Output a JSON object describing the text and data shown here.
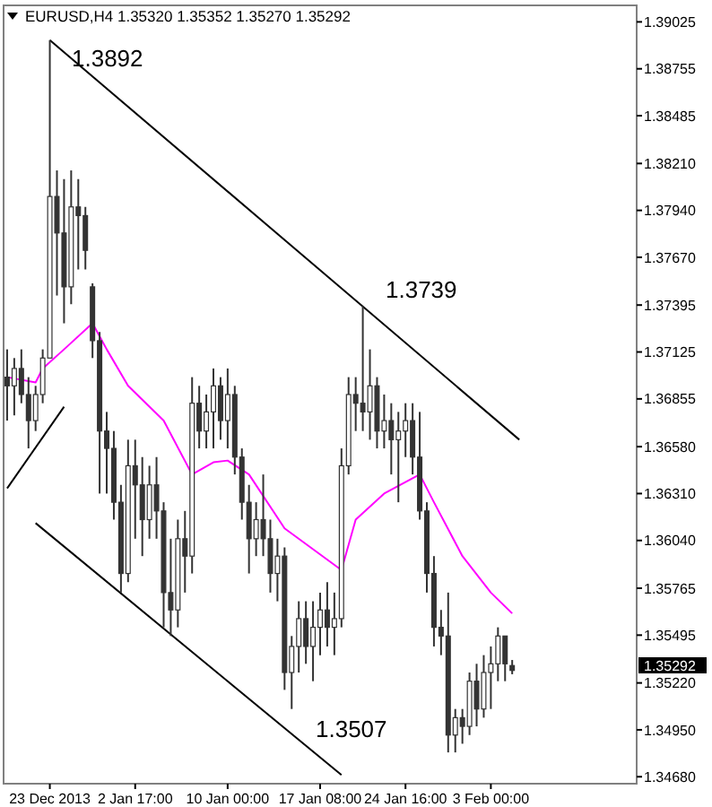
{
  "chart_data": {
    "type": "candlestick",
    "title": "EURUSD,H4 1.35320 1.35352 1.35270 1.35292",
    "color": "#333333",
    "grid": false,
    "categories": [
      null,
      null,
      null,
      null,
      null,
      null,
      "23 Dec 2013",
      null,
      null,
      null,
      null,
      null,
      null,
      null,
      null,
      null,
      null,
      null,
      "2 Jan 17:00",
      null,
      null,
      null,
      null,
      null,
      null,
      null,
      null,
      null,
      null,
      null,
      null,
      "10 Jan 00:00",
      null,
      null,
      null,
      null,
      null,
      null,
      null,
      null,
      null,
      null,
      null,
      null,
      "17 Jan 08:00",
      null,
      null,
      null,
      null,
      null,
      null,
      null,
      null,
      null,
      null,
      null,
      "24 Jan 16:00",
      null,
      null,
      null,
      null,
      null,
      null,
      null,
      null,
      null,
      null,
      null,
      "3 Feb 00:00",
      null,
      null,
      null,
      null,
      null,
      null,
      null,
      null,
      null,
      null,
      null,
      null,
      null,
      null,
      null,
      null,
      null,
      null,
      null,
      null
    ],
    "ylim": [
      1.3464,
      1.3912
    ],
    "yticks": [
      {
        "value": 1.39025,
        "label": "1.39025"
      },
      {
        "value": 1.38755,
        "label": "1.38755"
      },
      {
        "value": 1.38485,
        "label": "1.38485"
      },
      {
        "value": 1.3821,
        "label": "1.38210"
      },
      {
        "value": 1.3794,
        "label": "1.37940"
      },
      {
        "value": 1.3767,
        "label": "1.37670"
      },
      {
        "value": 1.37395,
        "label": "1.37395"
      },
      {
        "value": 1.37125,
        "label": "1.37125"
      },
      {
        "value": 1.36855,
        "label": "1.36855"
      },
      {
        "value": 1.3658,
        "label": "1.36580"
      },
      {
        "value": 1.3631,
        "label": "1.36310"
      },
      {
        "value": 1.3604,
        "label": "1.36040"
      },
      {
        "value": 1.35765,
        "label": "1.35765"
      },
      {
        "value": 1.35495,
        "label": "1.35495"
      },
      {
        "value": 1.3522,
        "label": "1.35220"
      },
      {
        "value": 1.3495,
        "label": "1.34950"
      },
      {
        "value": 1.3468,
        "label": "1.34680"
      }
    ],
    "ohlc": [
      [
        1.3698,
        1.3714,
        1.3673,
        1.3693
      ],
      [
        1.3693,
        1.3709,
        1.3676,
        1.3703
      ],
      [
        1.3703,
        1.3714,
        1.3683,
        1.3688
      ],
      [
        1.3688,
        1.3698,
        1.3657,
        1.3673
      ],
      [
        1.3673,
        1.3693,
        1.3667,
        1.3688
      ],
      [
        1.3688,
        1.3714,
        1.3683,
        1.3709
      ],
      [
        1.3709,
        1.3892,
        1.3709,
        1.3802
      ],
      [
        1.3802,
        1.3817,
        1.3745,
        1.3781
      ],
      [
        1.3781,
        1.3812,
        1.3729,
        1.375
      ],
      [
        1.375,
        1.3817,
        1.374,
        1.3796
      ],
      [
        1.3796,
        1.3812,
        1.376,
        1.3791
      ],
      [
        1.3791,
        1.3796,
        1.376,
        1.3771
      ],
      [
        1.375,
        1.3752,
        1.3709,
        1.3719
      ],
      [
        1.3719,
        1.3724,
        1.3631,
        1.3667
      ],
      [
        1.3667,
        1.3678,
        1.3631,
        1.3657
      ],
      [
        1.3657,
        1.3667,
        1.3616,
        1.3626
      ],
      [
        1.3626,
        1.3636,
        1.3574,
        1.3585
      ],
      [
        1.3585,
        1.3662,
        1.358,
        1.3647
      ],
      [
        1.3647,
        1.3662,
        1.3605,
        1.3636
      ],
      [
        1.3636,
        1.3652,
        1.3595,
        1.3616
      ],
      [
        1.3616,
        1.3647,
        1.3605,
        1.3636
      ],
      [
        1.3636,
        1.3652,
        1.3605,
        1.3621
      ],
      [
        1.3621,
        1.3626,
        1.3554,
        1.3574
      ],
      [
        1.3574,
        1.3605,
        1.3549,
        1.3564
      ],
      [
        1.3564,
        1.3616,
        1.3554,
        1.3605
      ],
      [
        1.3605,
        1.3621,
        1.3574,
        1.3595
      ],
      [
        1.3595,
        1.3698,
        1.3585,
        1.3683
      ],
      [
        1.3683,
        1.3693,
        1.3657,
        1.3667
      ],
      [
        1.3667,
        1.3688,
        1.3657,
        1.3678
      ],
      [
        1.3678,
        1.3703,
        1.3657,
        1.3693
      ],
      [
        1.3693,
        1.3698,
        1.3662,
        1.3673
      ],
      [
        1.3673,
        1.3703,
        1.3657,
        1.3688
      ],
      [
        1.3688,
        1.3693,
        1.3642,
        1.3652
      ],
      [
        1.3652,
        1.3657,
        1.3616,
        1.3626
      ],
      [
        1.3626,
        1.3636,
        1.3585,
        1.3605
      ],
      [
        1.3605,
        1.3626,
        1.3595,
        1.3616
      ],
      [
        1.3616,
        1.3642,
        1.3595,
        1.3605
      ],
      [
        1.3605,
        1.3616,
        1.3574,
        1.3585
      ],
      [
        1.3585,
        1.3605,
        1.3569,
        1.3595
      ],
      [
        1.3595,
        1.36,
        1.3518,
        1.3528
      ],
      [
        1.3528,
        1.3549,
        1.3507,
        1.3543
      ],
      [
        1.3543,
        1.3569,
        1.3528,
        1.3559
      ],
      [
        1.3559,
        1.3569,
        1.3533,
        1.3543
      ],
      [
        1.3543,
        1.3569,
        1.3523,
        1.3554
      ],
      [
        1.3554,
        1.3574,
        1.3538,
        1.3564
      ],
      [
        1.3564,
        1.358,
        1.3543,
        1.3554
      ],
      [
        1.3554,
        1.3574,
        1.3538,
        1.3559
      ],
      [
        1.3559,
        1.3657,
        1.3554,
        1.3647
      ],
      [
        1.3647,
        1.3698,
        1.3642,
        1.3688
      ],
      [
        1.3688,
        1.3698,
        1.3667,
        1.3683
      ],
      [
        1.3683,
        1.3739,
        1.3667,
        1.3678
      ],
      [
        1.3678,
        1.3714,
        1.3662,
        1.3693
      ],
      [
        1.3693,
        1.3698,
        1.3657,
        1.3667
      ],
      [
        1.3667,
        1.3688,
        1.3657,
        1.3673
      ],
      [
        1.3673,
        1.3683,
        1.3642,
        1.3662
      ],
      [
        1.3662,
        1.3678,
        1.3626,
        1.3667
      ],
      [
        1.3667,
        1.3683,
        1.3652,
        1.3673
      ],
      [
        1.3673,
        1.3683,
        1.3642,
        1.3652
      ],
      [
        1.3652,
        1.3678,
        1.3616,
        1.3621
      ],
      [
        1.3621,
        1.3626,
        1.3574,
        1.3585
      ],
      [
        1.3585,
        1.3595,
        1.3543,
        1.3554
      ],
      [
        1.3554,
        1.3564,
        1.3538,
        1.3549
      ],
      [
        1.3549,
        1.3574,
        1.3482,
        1.3492
      ],
      [
        1.3492,
        1.3507,
        1.3482,
        1.3502
      ],
      [
        1.3502,
        1.3507,
        1.3487,
        1.3497
      ],
      [
        1.3497,
        1.3528,
        1.3492,
        1.3523
      ],
      [
        1.3523,
        1.3533,
        1.3497,
        1.3507
      ],
      [
        1.3507,
        1.3538,
        1.3502,
        1.3528
      ],
      [
        1.3528,
        1.3543,
        1.3507,
        1.3533
      ],
      [
        1.3533,
        1.3554,
        1.3523,
        1.3549
      ],
      [
        1.3549,
        1.3549,
        1.3523,
        1.3533
      ],
      [
        1.3532,
        1.35352,
        1.3527,
        1.35292
      ],
      null,
      null,
      null,
      null,
      null,
      null,
      null,
      null,
      null,
      null,
      null,
      null,
      null,
      null,
      null,
      null,
      null
    ],
    "series": [
      {
        "type": "line",
        "color": "#ff00ff",
        "values": [
          1.3698,
          null,
          null,
          null,
          1.3695,
          1.3703,
          null,
          null,
          1.3714,
          null,
          null,
          null,
          1.3729,
          null,
          1.3714,
          null,
          null,
          1.3693,
          null,
          null,
          null,
          null,
          1.3673,
          null,
          null,
          null,
          1.3642,
          null,
          null,
          1.3649,
          null,
          1.365,
          null,
          null,
          1.3642,
          null,
          null,
          null,
          null,
          1.3611,
          null,
          null,
          null,
          null,
          null,
          null,
          null,
          1.3587,
          null,
          1.3616,
          null,
          null,
          null,
          1.3631,
          null,
          null,
          null,
          null,
          1.3642,
          null,
          1.3626,
          null,
          null,
          null,
          1.3595,
          null,
          null,
          null,
          1.3574,
          null,
          null,
          1.3562,
          null,
          null,
          null,
          null,
          null,
          null,
          null,
          null,
          null,
          null,
          null,
          null,
          null,
          null,
          null,
          null,
          null
        ]
      },
      {
        "type": "line",
        "color": "#000000",
        "values": [
          null,
          null,
          null,
          null,
          null,
          null,
          1.3892,
          null,
          null,
          null,
          null,
          null,
          null,
          null,
          null,
          null,
          null,
          null,
          null,
          null,
          null,
          null,
          null,
          null,
          null,
          null,
          null,
          null,
          null,
          null,
          null,
          null,
          null,
          null,
          null,
          null,
          null,
          null,
          null,
          null,
          null,
          null,
          null,
          null,
          null,
          null,
          null,
          null,
          null,
          null,
          null,
          null,
          null,
          null,
          null,
          null,
          null,
          null,
          null,
          null,
          null,
          null,
          null,
          null,
          null,
          null,
          null,
          null,
          null,
          null,
          null,
          null,
          1.3662,
          null,
          null,
          null,
          null,
          null,
          null,
          null,
          null,
          null,
          null,
          null,
          null,
          null,
          null,
          null,
          null
        ]
      },
      {
        "type": "line",
        "color": "#000000",
        "values": [
          null,
          null,
          null,
          null,
          1.3614,
          null,
          null,
          null,
          null,
          null,
          null,
          null,
          null,
          null,
          null,
          null,
          null,
          null,
          null,
          null,
          null,
          null,
          null,
          null,
          null,
          null,
          null,
          null,
          null,
          null,
          null,
          null,
          null,
          null,
          null,
          null,
          null,
          null,
          null,
          null,
          null,
          null,
          null,
          null,
          null,
          null,
          null,
          1.3469,
          null,
          null,
          null,
          null,
          null,
          null,
          null,
          null,
          null,
          null,
          null,
          null,
          null,
          null,
          null,
          null,
          null,
          null,
          null,
          null,
          null,
          null,
          null,
          null,
          null,
          null,
          null,
          null,
          null,
          null,
          null,
          null,
          null,
          null,
          null,
          null,
          null,
          null,
          null,
          null,
          null
        ]
      },
      {
        "type": "line",
        "color": "#000000",
        "values": [
          1.3634,
          null,
          null,
          null,
          null,
          null,
          null,
          null,
          1.3681,
          null,
          null,
          null,
          null,
          null,
          null,
          null,
          null,
          null,
          null,
          null,
          null,
          null,
          null,
          null,
          null,
          null,
          null,
          null,
          null,
          null,
          null,
          null,
          null,
          null,
          null,
          null,
          null,
          null,
          null,
          null,
          null,
          null,
          null,
          null,
          null,
          null,
          null,
          null,
          null,
          null,
          null,
          null,
          null,
          null,
          null,
          null,
          null,
          null,
          null,
          null,
          null,
          null,
          null,
          null,
          null,
          null,
          null,
          null,
          null,
          null,
          null,
          null,
          null,
          null,
          null,
          null,
          null,
          null,
          null,
          null,
          null,
          null,
          null,
          null,
          null,
          null,
          null,
          null,
          null
        ]
      }
    ],
    "annotations": [
      "1.3892",
      "1.3739",
      "1.3507",
      "1.35292"
    ]
  }
}
